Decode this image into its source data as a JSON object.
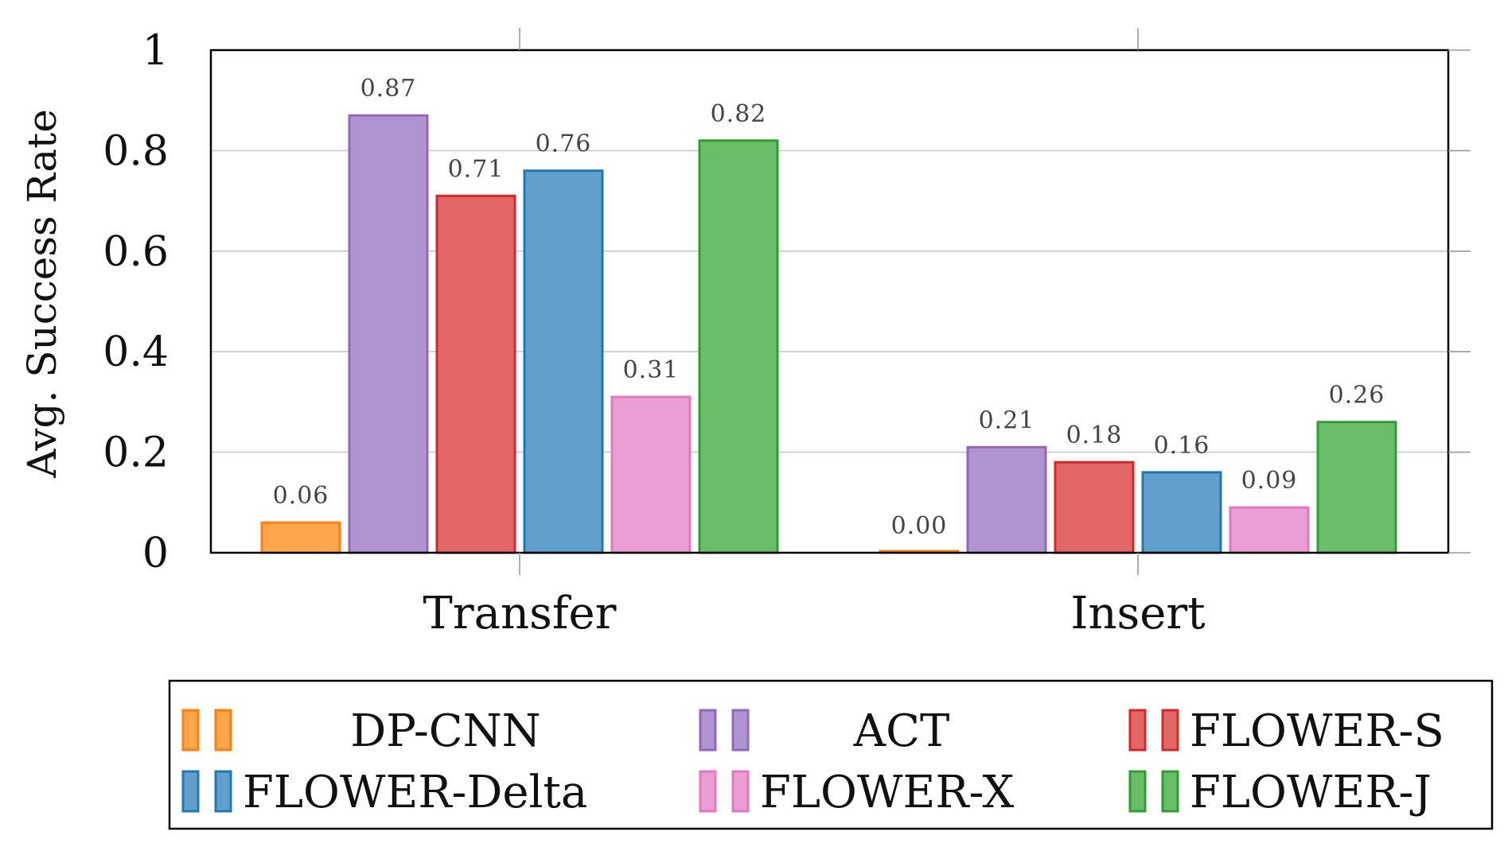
{
  "chart_data": {
    "type": "bar",
    "title": "",
    "xlabel": "",
    "ylabel": "Avg. Success Rate",
    "ylim": [
      0,
      1
    ],
    "yticks": [
      {
        "value": 0,
        "label": "0"
      },
      {
        "value": 0.2,
        "label": "0.2"
      },
      {
        "value": 0.4,
        "label": "0.4"
      },
      {
        "value": 0.6,
        "label": "0.6"
      },
      {
        "value": 0.8,
        "label": "0.8"
      },
      {
        "value": 1,
        "label": "1"
      }
    ],
    "grid": true,
    "categories": [
      "Transfer",
      "Insert"
    ],
    "series": [
      {
        "name": "DP-CNN",
        "fill": "#ffa64d",
        "stroke": "#ff7f0e",
        "values": [
          0.06,
          0.0
        ],
        "labels": [
          "0.06",
          "0.00"
        ]
      },
      {
        "name": "ACT",
        "fill": "#b094d1",
        "stroke": "#9467bd",
        "values": [
          0.87,
          0.21
        ],
        "labels": [
          "0.87",
          "0.21"
        ]
      },
      {
        "name": "FLOWER-S",
        "fill": "#e26868",
        "stroke": "#d62728",
        "values": [
          0.71,
          0.18
        ],
        "labels": [
          "0.71",
          "0.18"
        ]
      },
      {
        "name": "FLOWER-Delta",
        "fill": "#62a0cb",
        "stroke": "#1f77b4",
        "values": [
          0.76,
          0.16
        ],
        "labels": [
          "0.76",
          "0.16"
        ]
      },
      {
        "name": "FLOWER-X",
        "fill": "#eb9ed4",
        "stroke": "#e377c2",
        "values": [
          0.31,
          0.09
        ],
        "labels": [
          "0.31",
          "0.09"
        ]
      },
      {
        "name": "FLOWER-J",
        "fill": "#6abd69",
        "stroke": "#2ca02c",
        "values": [
          0.82,
          0.26
        ],
        "labels": [
          "0.82",
          "0.26"
        ]
      }
    ],
    "legend": {
      "position": "bottom",
      "columns": 3
    }
  }
}
